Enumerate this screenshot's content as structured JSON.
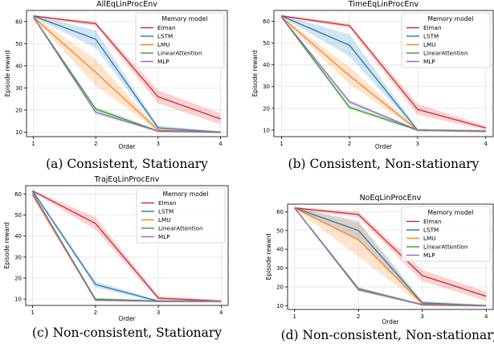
{
  "chart_data": [
    {
      "type": "line",
      "title": "AllEqLinProcEnv",
      "caption": "(a) Consistent, Stationary",
      "xlabel": "Order",
      "ylabel": "Episode reward",
      "x": [
        1,
        2,
        3,
        4
      ],
      "xticks": [
        "1",
        "2",
        "3",
        "4"
      ],
      "ylim": [
        8,
        65
      ],
      "yticks": [
        10,
        20,
        30,
        40,
        50,
        60
      ],
      "grid": true,
      "legend": {
        "title": "Memory model",
        "placement": "top-right"
      },
      "series": [
        {
          "name": "Elman",
          "color": "#d62728",
          "values": [
            62.5,
            59,
            26,
            16
          ],
          "lower": [
            62,
            58,
            23,
            13.5
          ],
          "upper": [
            63,
            60,
            29,
            18.5
          ]
        },
        {
          "name": "LSTM",
          "color": "#1f77b4",
          "values": [
            62.5,
            52,
            12,
            10
          ],
          "lower": [
            62,
            48,
            11,
            9.5
          ],
          "upper": [
            63,
            56,
            13,
            10.5
          ]
        },
        {
          "name": "LMU",
          "color": "#ff7f0e",
          "values": [
            62,
            37,
            11,
            10
          ],
          "lower": [
            61.5,
            31,
            10.5,
            9.5
          ],
          "upper": [
            62.5,
            43,
            11.5,
            10.5
          ]
        },
        {
          "name": "LinearAttention",
          "color": "#2ca02c",
          "values": [
            62,
            20.5,
            10.5,
            10
          ],
          "lower": [
            61.5,
            19.5,
            10,
            9.5
          ],
          "upper": [
            62.5,
            21.5,
            11,
            10.5
          ]
        },
        {
          "name": "MLP",
          "color": "#9467bd",
          "values": [
            62,
            19,
            10.5,
            10
          ],
          "lower": [
            61.5,
            18,
            10,
            9.5
          ],
          "upper": [
            62.5,
            20,
            11,
            10.5
          ]
        }
      ]
    },
    {
      "type": "line",
      "title": "TimeEqLinProcEnv",
      "caption": "(b) Consistent, Non-stationary",
      "xlabel": "Order",
      "ylabel": "Episode reward",
      "x": [
        1,
        2,
        3,
        4
      ],
      "xticks": [
        "1",
        "2",
        "3",
        "4"
      ],
      "ylim": [
        7,
        65
      ],
      "yticks": [
        10,
        20,
        30,
        40,
        50,
        60
      ],
      "grid": true,
      "legend": {
        "title": "Memory model",
        "placement": "top-right"
      },
      "series": [
        {
          "name": "Elman",
          "color": "#d62728",
          "values": [
            62.5,
            58,
            19.5,
            11
          ],
          "lower": [
            62,
            57,
            17,
            10
          ],
          "upper": [
            63,
            59,
            22,
            12
          ]
        },
        {
          "name": "LSTM",
          "color": "#1f77b4",
          "values": [
            62.5,
            49,
            10,
            9.5
          ],
          "lower": [
            62,
            44,
            9.5,
            9
          ],
          "upper": [
            63,
            54,
            10.5,
            10
          ]
        },
        {
          "name": "LMU",
          "color": "#ff7f0e",
          "values": [
            62,
            35,
            10,
            9.5
          ],
          "lower": [
            61.5,
            31,
            9.5,
            9
          ],
          "upper": [
            62.5,
            39,
            10.5,
            10
          ]
        },
        {
          "name": "LinearAttention",
          "color": "#2ca02c",
          "values": [
            62,
            20.5,
            10,
            9.5
          ],
          "lower": [
            61.5,
            19.5,
            9.5,
            9
          ],
          "upper": [
            62.5,
            21.5,
            10.5,
            10
          ]
        },
        {
          "name": "MLP",
          "color": "#9467bd",
          "values": [
            62,
            23,
            10,
            9.5
          ],
          "lower": [
            61.5,
            22,
            9.5,
            9
          ],
          "upper": [
            62.5,
            24,
            10.5,
            10
          ]
        }
      ]
    },
    {
      "type": "line",
      "title": "TrajEqLinProcEnv",
      "caption": "(c) Non-consistent, Stationary",
      "xlabel": "Order",
      "ylabel": "Episode reward",
      "x": [
        1,
        2,
        3,
        4
      ],
      "xticks": [
        "1",
        "2",
        "3",
        "4"
      ],
      "ylim": [
        7,
        64
      ],
      "yticks": [
        10,
        20,
        30,
        40,
        50,
        60
      ],
      "grid": true,
      "legend": {
        "title": "Memory model",
        "placement": "top-right"
      },
      "series": [
        {
          "name": "Elman",
          "color": "#d62728",
          "values": [
            61.5,
            46,
            10.5,
            9
          ],
          "lower": [
            61,
            43,
            9.5,
            8.5
          ],
          "upper": [
            62,
            49,
            11.5,
            9.5
          ]
        },
        {
          "name": "LSTM",
          "color": "#1f77b4",
          "values": [
            61.5,
            17,
            9,
            9
          ],
          "lower": [
            61,
            15.5,
            8.5,
            8.5
          ],
          "upper": [
            62,
            18.5,
            9.5,
            9.5
          ]
        },
        {
          "name": "LMU",
          "color": "#ff7f0e",
          "values": [
            59.5,
            9.5,
            9,
            9
          ],
          "lower": [
            58.5,
            9,
            8.5,
            8.5
          ],
          "upper": [
            60.5,
            10,
            9.5,
            9.5
          ]
        },
        {
          "name": "LinearAttention",
          "color": "#2ca02c",
          "values": [
            60.5,
            10,
            9,
            9
          ],
          "lower": [
            59.5,
            9.5,
            8.5,
            8.5
          ],
          "upper": [
            61.5,
            10.5,
            9.5,
            9.5
          ]
        },
        {
          "name": "MLP",
          "color": "#9467bd",
          "values": [
            60.5,
            9.5,
            9,
            9
          ],
          "lower": [
            59.5,
            9,
            8.5,
            8.5
          ],
          "upper": [
            61.5,
            10,
            9.5,
            9.5
          ]
        }
      ]
    },
    {
      "type": "line",
      "title": "NoEqLinProcEnv",
      "caption": "(d) Non-consistent, Non-stationary",
      "xlabel": "Order",
      "ylabel": "Episode reward",
      "x": [
        1,
        2,
        3,
        4
      ],
      "xticks": [
        "1",
        "2",
        "3",
        "4"
      ],
      "ylim": [
        8,
        64
      ],
      "yticks": [
        10,
        20,
        30,
        40,
        50,
        60
      ],
      "grid": true,
      "legend": {
        "title": "Memory model",
        "placement": "top-right"
      },
      "series": [
        {
          "name": "Elman",
          "color": "#d62728",
          "values": [
            62,
            58.5,
            26,
            15
          ],
          "lower": [
            61.5,
            57,
            23,
            12.5
          ],
          "upper": [
            62.5,
            60,
            29,
            17.5
          ]
        },
        {
          "name": "LSTM",
          "color": "#1f77b4",
          "values": [
            62,
            50,
            11.5,
            10
          ],
          "lower": [
            61.5,
            45,
            10.5,
            9.5
          ],
          "upper": [
            62.5,
            55,
            12.5,
            10.5
          ]
        },
        {
          "name": "LMU",
          "color": "#ff7f0e",
          "values": [
            62,
            45,
            11,
            10
          ],
          "lower": [
            61.5,
            36,
            10,
            9.5
          ],
          "upper": [
            62.5,
            54,
            12,
            10.5
          ]
        },
        {
          "name": "LinearAttention",
          "color": "#2ca02c",
          "values": [
            62,
            19,
            10.5,
            10
          ],
          "lower": [
            61.5,
            18,
            10,
            9.5
          ],
          "upper": [
            62.5,
            20,
            11,
            10.5
          ]
        },
        {
          "name": "MLP",
          "color": "#9467bd",
          "values": [
            62,
            18.5,
            10.5,
            10
          ],
          "lower": [
            61.5,
            17.5,
            10,
            9.5
          ],
          "upper": [
            62.5,
            19.5,
            11,
            10.5
          ]
        }
      ]
    }
  ]
}
